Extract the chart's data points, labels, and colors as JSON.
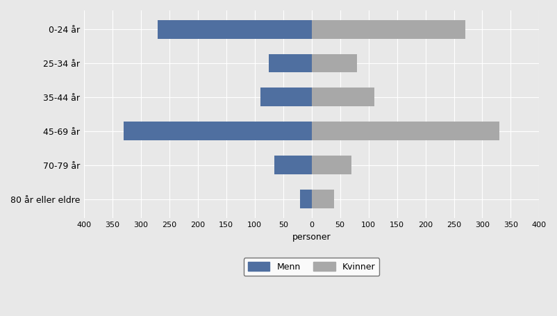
{
  "categories": [
    "0-24 år",
    "25-34 år",
    "35-44 år",
    "45-69 år",
    "70-79 år",
    "80 år eller eldre"
  ],
  "menn": [
    270,
    75,
    90,
    330,
    65,
    20
  ],
  "kvinner": [
    270,
    80,
    110,
    330,
    70,
    40
  ],
  "menn_color": "#4f6fa0",
  "kvinner_color": "#a8a8a8",
  "xlabel": "personer",
  "xlim": [
    -400,
    400
  ],
  "xticks": [
    -400,
    -350,
    -300,
    -250,
    -200,
    -150,
    -100,
    -50,
    0,
    50,
    100,
    150,
    200,
    250,
    300,
    350,
    400
  ],
  "xticklabels": [
    "400",
    "350",
    "300",
    "250",
    "200",
    "150",
    "100",
    "50",
    "0",
    "50",
    "100",
    "150",
    "200",
    "250",
    "300",
    "350",
    "400"
  ],
  "legend_labels": [
    "Menn",
    "Kvinner"
  ],
  "background_color": "#e8e8e8",
  "plot_bg_color": "#e8e8e8",
  "grid_color": "#ffffff",
  "bar_height": 0.55
}
